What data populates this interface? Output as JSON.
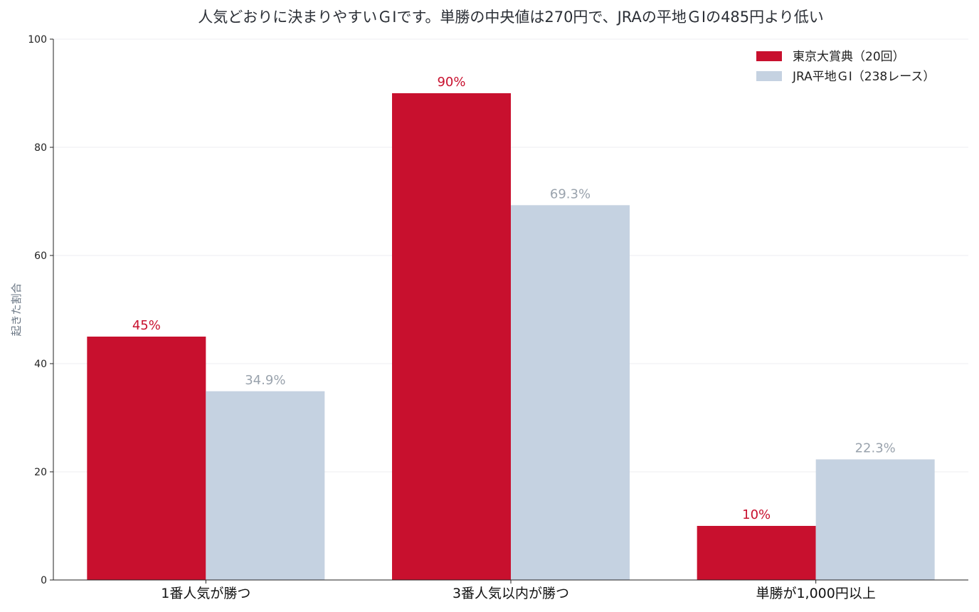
{
  "chart_data": {
    "type": "bar",
    "title": "人気どおりに決まりやすいＧⅠです。単勝の中央値は270円で、JRAの平地ＧⅠの485円より低い",
    "xlabel": "",
    "ylabel": "起きた割合",
    "ylim": [
      0,
      100
    ],
    "yticks": [
      "0",
      "20",
      "40",
      "60",
      "80",
      "100"
    ],
    "grid": true,
    "legend_position": "top-right",
    "categories": [
      "1番人気が勝つ",
      "3番人気以内が勝つ",
      "単勝が1,000円以上"
    ],
    "series": [
      {
        "name": "東京大賞典（20回）",
        "color": "#c8102e",
        "values": [
          45,
          90,
          10
        ],
        "labels": [
          "45%",
          "90%",
          "10%"
        ]
      },
      {
        "name": "JRA平地ＧⅠ（238レース）",
        "color": "#c5d2e1",
        "label_color": "#9aa3ad",
        "values": [
          34.9,
          69.3,
          22.3
        ],
        "labels": [
          "34.9%",
          "69.3%",
          "22.3%"
        ]
      }
    ]
  }
}
